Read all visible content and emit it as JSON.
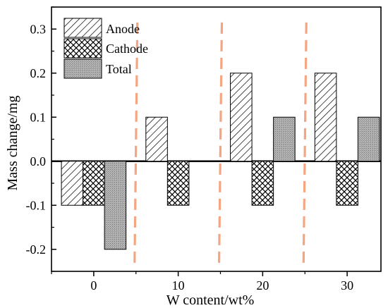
{
  "chart_data": {
    "type": "bar",
    "title": "",
    "xlabel": "W content/wt%",
    "ylabel": "Mass change/mg",
    "xlim": [
      -5,
      34
    ],
    "ylim": [
      -0.25,
      0.35
    ],
    "x_ticks": [
      0,
      10,
      20,
      30
    ],
    "y_ticks": [
      -0.2,
      -0.1,
      0.0,
      0.1,
      0.2,
      0.3
    ],
    "y_tick_labels": [
      "-0.2",
      "-0.1",
      "0.0",
      "0.1",
      "0.2",
      "0.3"
    ],
    "categories": [
      "0",
      "10",
      "20",
      "30"
    ],
    "series": [
      {
        "name": "Anode",
        "values": [
          -0.1,
          0.1,
          0.2,
          0.2
        ],
        "pattern": "diagonal-hatch"
      },
      {
        "name": "Cathode",
        "values": [
          -0.1,
          -0.1,
          -0.1,
          -0.1
        ],
        "pattern": "cross-hatch"
      },
      {
        "name": "Total",
        "values": [
          -0.2,
          0.0,
          0.1,
          0.1
        ],
        "pattern": "gray-dots"
      }
    ],
    "divider_lines_x": [
      5,
      15,
      25
    ],
    "divider_color": "#f4a582",
    "zero_line": true,
    "grid": false,
    "legend_position": "top-left"
  }
}
